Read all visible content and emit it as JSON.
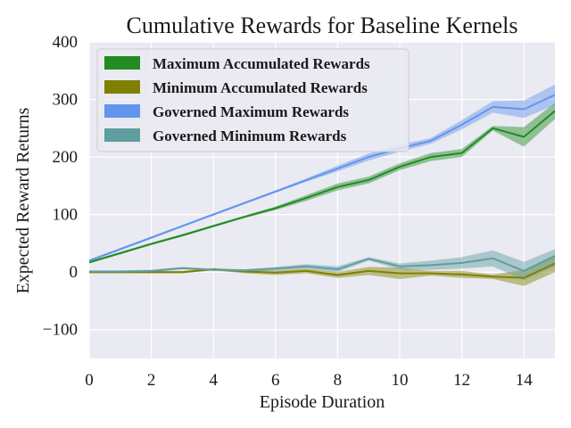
{
  "chart_data": {
    "type": "line",
    "title": "Cumulative Rewards for Baseline Kernels",
    "xlabel": "Episode Duration",
    "ylabel": "Expected Reward Returns",
    "xlim": [
      0,
      15
    ],
    "ylim": [
      -150,
      400
    ],
    "xticks": [
      0,
      2,
      4,
      6,
      8,
      10,
      12,
      14
    ],
    "yticks": [
      -100,
      0,
      100,
      200,
      300,
      400
    ],
    "xtick_labels": [
      "0",
      "2",
      "4",
      "6",
      "8",
      "10",
      "12",
      "14"
    ],
    "ytick_labels": [
      "−100",
      "0",
      "100",
      "200",
      "300",
      "400"
    ],
    "grid": true,
    "legend_position": "top-left",
    "x": [
      0,
      1,
      2,
      3,
      4,
      5,
      6,
      7,
      8,
      9,
      10,
      11,
      12,
      13,
      14,
      15
    ],
    "series": [
      {
        "name": "Maximum Accumulated Rewards",
        "color": "#228b22",
        "values": [
          17,
          33,
          49,
          64,
          80,
          96,
          111,
          129,
          148,
          160,
          183,
          200,
          207,
          250,
          235,
          280
        ],
        "lower": [
          15,
          31,
          47,
          62,
          78,
          94,
          108,
          124,
          142,
          154,
          177,
          193,
          200,
          246,
          218,
          266
        ],
        "upper": [
          19,
          35,
          51,
          66,
          82,
          98,
          114,
          134,
          154,
          166,
          189,
          207,
          214,
          254,
          252,
          294
        ]
      },
      {
        "name": "Minimum Accumulated Rewards",
        "color": "#808000",
        "values": [
          0,
          0,
          0,
          0,
          5,
          1,
          -1,
          2,
          -5,
          2,
          -2,
          -2,
          -4,
          -8,
          -10,
          15
        ],
        "lower": [
          -2,
          -2,
          -2,
          -2,
          3,
          -2,
          -5,
          -2,
          -10,
          -5,
          -12,
          -6,
          -10,
          -12,
          -24,
          0
        ],
        "upper": [
          2,
          2,
          2,
          2,
          7,
          4,
          3,
          6,
          0,
          9,
          8,
          2,
          2,
          -4,
          4,
          30
        ]
      },
      {
        "name": "Governed Maximum Rewards",
        "color": "#6495ed",
        "values": [
          20,
          40,
          60,
          80,
          100,
          120,
          140,
          160,
          180,
          200,
          215,
          228,
          256,
          287,
          283,
          308
        ],
        "lower": [
          18,
          38,
          58,
          78,
          98,
          118,
          138,
          157,
          175,
          194,
          209,
          223,
          248,
          277,
          268,
          290
        ],
        "upper": [
          22,
          42,
          62,
          82,
          102,
          122,
          142,
          163,
          185,
          206,
          221,
          233,
          264,
          297,
          298,
          326
        ]
      },
      {
        "name": "Governed Minimum Rewards",
        "color": "#5f9ea0",
        "values": [
          1,
          1,
          2,
          7,
          4,
          3,
          6,
          10,
          5,
          23,
          10,
          12,
          16,
          24,
          2,
          28
        ],
        "lower": [
          -1,
          -1,
          0,
          5,
          2,
          1,
          3,
          6,
          0,
          20,
          5,
          4,
          6,
          10,
          -14,
          10
        ],
        "upper": [
          3,
          3,
          4,
          9,
          6,
          5,
          9,
          14,
          10,
          26,
          15,
          20,
          26,
          38,
          18,
          40
        ]
      }
    ]
  }
}
